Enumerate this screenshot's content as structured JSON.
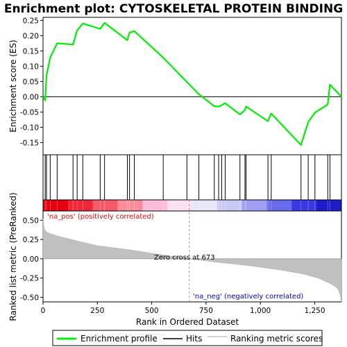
{
  "chart_data": {
    "type": "line",
    "title": "Enrichment plot: CYTOSKELETAL PROTEIN BINDING",
    "n_genes": 1373,
    "top_panel": {
      "ylabel": "Enrichment score (ES)",
      "ylim": [
        -0.19,
        0.26
      ],
      "yticks": [
        -0.15,
        -0.1,
        -0.05,
        0.0,
        0.05,
        0.1,
        0.15,
        0.2,
        0.25
      ],
      "ytick_labels": [
        "-0.15",
        "-0.10",
        "-0.05",
        "0.00",
        "0.05",
        "0.10",
        "0.15",
        "0.20",
        "0.25"
      ],
      "series": [
        {
          "name": "Enrichment profile",
          "color": "#00ee00",
          "x": [
            0,
            10,
            16,
            33,
            65,
            138,
            157,
            183,
            263,
            283,
            388,
            398,
            420,
            553,
            717,
            788,
            808,
            822,
            838,
            906,
            929,
            934,
            1035,
            1050,
            1187,
            1220,
            1251,
            1310,
            1320,
            1373
          ],
          "y": [
            0.0,
            -0.012,
            0.07,
            0.128,
            0.175,
            0.171,
            0.217,
            0.24,
            0.222,
            0.242,
            0.185,
            0.21,
            0.215,
            0.128,
            0.008,
            -0.031,
            -0.032,
            -0.028,
            -0.021,
            -0.058,
            -0.044,
            -0.032,
            -0.08,
            -0.055,
            -0.158,
            -0.083,
            -0.052,
            -0.025,
            0.04,
            0.0
          ]
        }
      ]
    },
    "hits": [
      10,
      16,
      33,
      65,
      138,
      157,
      183,
      263,
      283,
      388,
      398,
      420,
      553,
      662,
      717,
      788,
      808,
      822,
      838,
      906,
      929,
      934,
      1035,
      1050,
      1187,
      1220,
      1251,
      1310,
      1320
    ],
    "heatmap_colors": [
      "#e6000f",
      "#f0283a",
      "#f55a6a",
      "#fa8c9a",
      "#fdbcd8",
      "#fde1f3",
      "#e7e7fb",
      "#c9c9f6",
      "#9e9ef2",
      "#6a6aef",
      "#3a3ae4",
      "#1c1cc8"
    ],
    "bottom_panel": {
      "ylabel": "Ranked list metric (PreRanked)",
      "xlabel": "Rank in Ordered Dataset",
      "ylim": [
        -0.56,
        0.62
      ],
      "yticks": [
        -0.5,
        -0.25,
        0.0,
        0.25,
        0.5
      ],
      "ytick_labels": [
        "-0.50",
        "-0.25",
        "0.00",
        "0.25",
        "0.50"
      ],
      "xlim": [
        0,
        1373
      ],
      "xticks": [
        0,
        250,
        500,
        750,
        1000,
        1250
      ],
      "xtick_labels": [
        "0",
        "250",
        "500",
        "750",
        "1,000",
        "1,250"
      ],
      "metric_curve": {
        "x": [
          0,
          3,
          8,
          20,
          60,
          150,
          250,
          400,
          550,
          673,
          800,
          950,
          1100,
          1200,
          1270,
          1320,
          1350,
          1360,
          1367,
          1373
        ],
        "y": [
          0.52,
          0.44,
          0.37,
          0.34,
          0.3,
          0.235,
          0.17,
          0.115,
          0.05,
          0.0,
          -0.045,
          -0.09,
          -0.15,
          -0.2,
          -0.255,
          -0.32,
          -0.37,
          -0.41,
          -0.47,
          -0.56
        ]
      },
      "pos_label": "'na_pos' (positively correlated)",
      "neg_label": "'na_neg' (negatively correlated)",
      "zero_cross_label": "Zero cross at 673",
      "zero_cross_rank": 673
    },
    "legend": {
      "placement": "bottom",
      "items": [
        {
          "label": "Enrichment profile",
          "color": "#00ee00",
          "kind": "line"
        },
        {
          "label": "Hits",
          "color": "#000000",
          "kind": "line"
        },
        {
          "label": "Ranking metric scores",
          "color": "#c0c0c0",
          "kind": "line"
        }
      ]
    }
  }
}
